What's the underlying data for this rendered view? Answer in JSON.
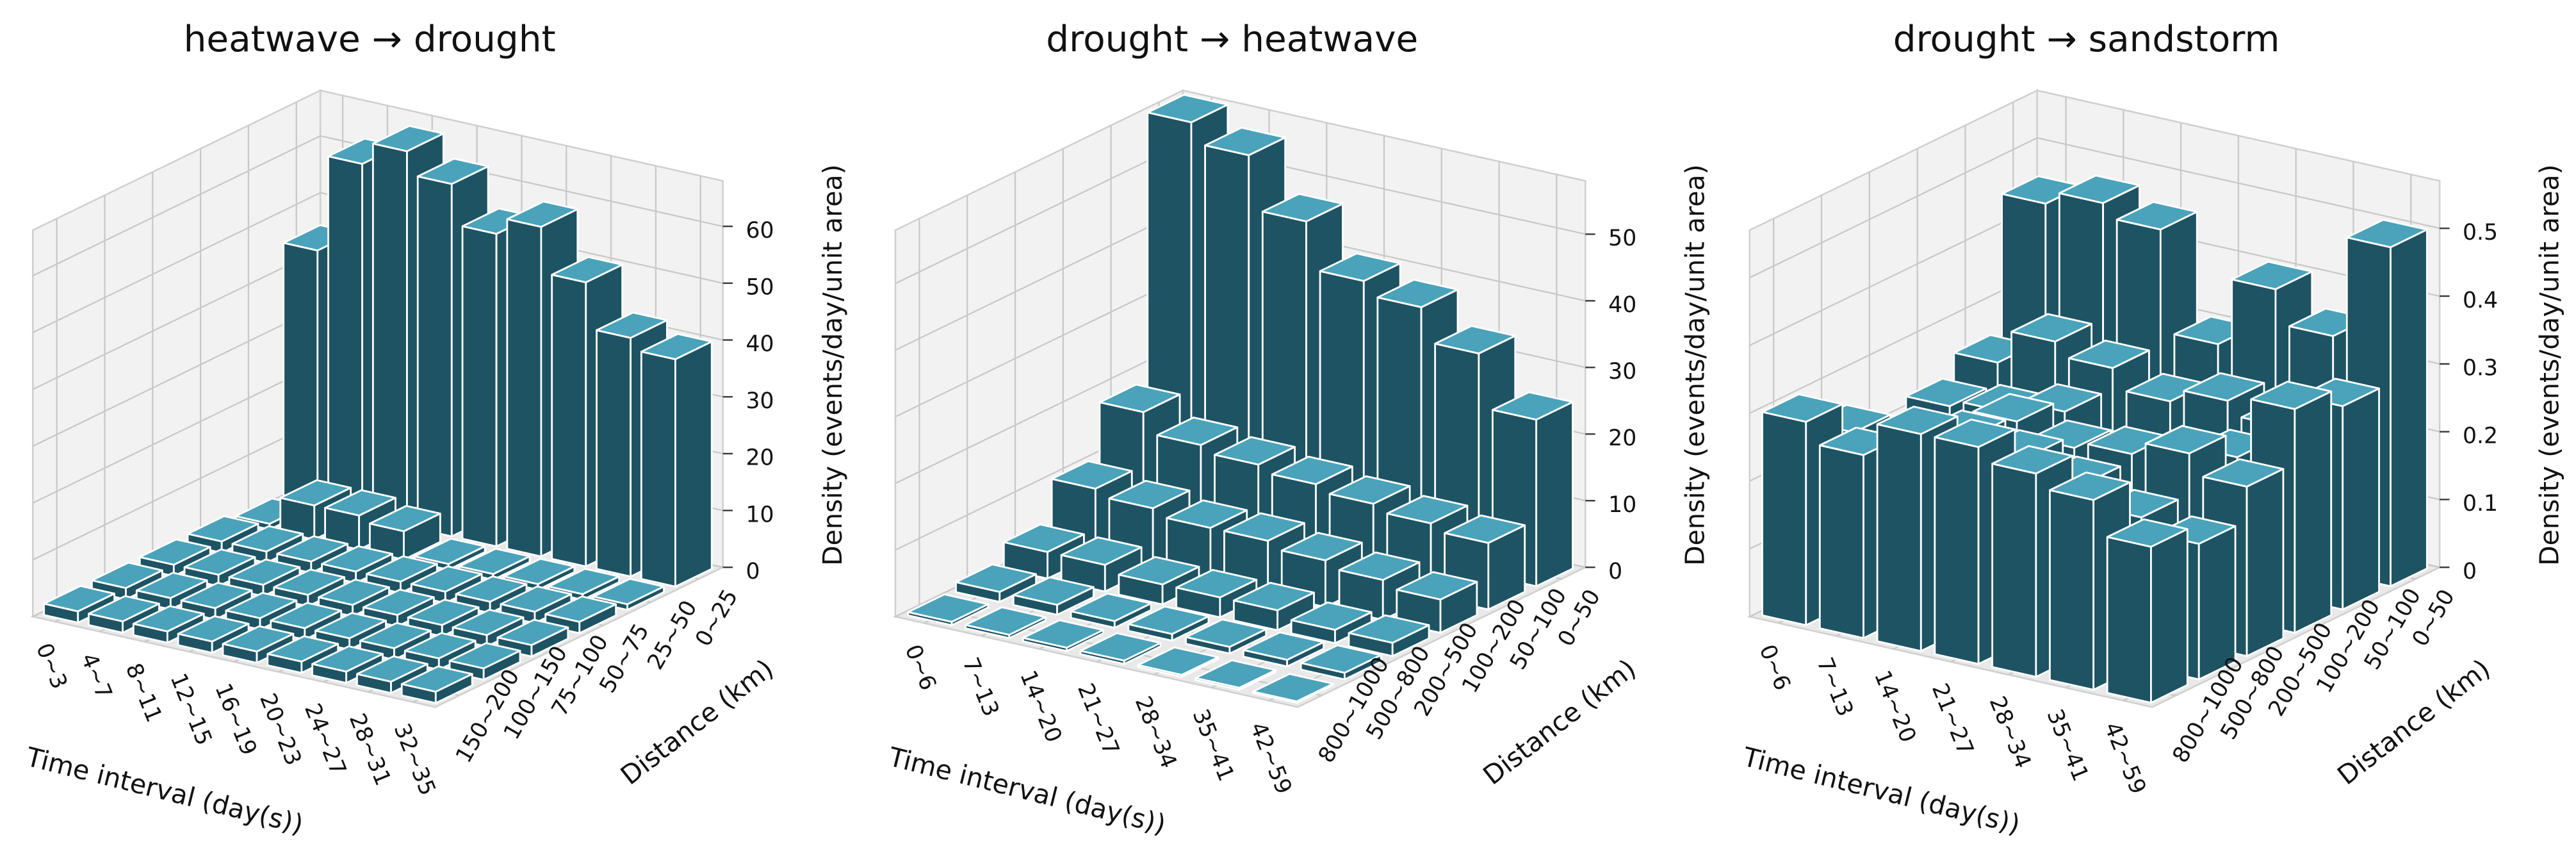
{
  "chart_data": [
    {
      "type": "bar3d",
      "title": "heatwave → drought",
      "xlabel": "Time interval (day(s))",
      "ylabel": "Distance (km)",
      "zlabel": "Density (events/day/unit area)",
      "x_categories": [
        "0~3",
        "4~7",
        "8~11",
        "12~15",
        "16~19",
        "20~23",
        "24~27",
        "28~31",
        "32~35"
      ],
      "y_categories": [
        "0~25",
        "25~50",
        "50~75",
        "75~100",
        "100~150",
        "150~200"
      ],
      "values": [
        [
          45,
          62,
          66,
          62,
          55,
          58,
          50,
          42,
          40
        ],
        [
          1,
          6,
          6,
          5,
          1,
          1,
          1,
          1,
          1
        ],
        [
          2,
          2,
          2,
          2,
          2,
          2,
          2,
          2,
          2
        ],
        [
          2,
          2,
          2,
          2,
          2,
          2,
          2,
          2,
          2
        ],
        [
          2,
          2,
          2,
          2,
          2,
          2,
          2,
          2,
          2
        ],
        [
          2,
          2,
          2,
          2,
          2,
          2,
          2,
          2,
          2
        ]
      ],
      "top_color": "#4aa3ba",
      "side_color": "#1e5363",
      "zlim": [
        0,
        68
      ],
      "zticks": [
        0,
        10,
        20,
        30,
        40,
        50,
        60
      ],
      "grid": true
    },
    {
      "type": "bar3d",
      "title": "drought → heatwave",
      "xlabel": "Time interval (day(s))",
      "ylabel": "Distance (km)",
      "zlabel": "Density (events/day/unit area)",
      "x_categories": [
        "0~6",
        "7~13",
        "14~20",
        "21~27",
        "28~34",
        "35~41",
        "42~59"
      ],
      "y_categories": [
        "0~50",
        "50~100",
        "100~200",
        "200~500",
        "500~800",
        "800~1000"
      ],
      "values": [
        [
          58,
          55,
          47,
          40,
          38,
          33,
          25
        ],
        [
          18,
          15,
          14,
          13,
          12,
          11,
          10
        ],
        [
          10,
          9,
          8,
          8,
          7,
          6,
          5
        ],
        [
          4,
          4,
          3,
          3,
          3,
          2,
          2
        ],
        [
          1.5,
          1.5,
          1,
          1,
          1,
          1,
          1
        ],
        [
          0.5,
          0.5,
          0.5,
          0.5,
          0.3,
          0.3,
          0.2
        ]
      ],
      "top_color": "#4aa3ba",
      "side_color": "#1e5363",
      "zlim": [
        0,
        58
      ],
      "zticks": [
        0,
        10,
        20,
        30,
        40,
        50
      ],
      "grid": true
    },
    {
      "type": "bar3d",
      "title": "drought → sandstorm",
      "xlabel": "Time interval (day(s))",
      "ylabel": "Distance (km)",
      "zlabel": "Density (events/day/unit area)",
      "x_categories": [
        "0~6",
        "7~13",
        "14~20",
        "21~27",
        "28~34",
        "35~41",
        "42~59"
      ],
      "y_categories": [
        "0~50",
        "50~100",
        "100~200",
        "200~500",
        "500~800",
        "800~1000"
      ],
      "values": [
        [
          0.45,
          0.47,
          0.45,
          0.3,
          0.4,
          0.35,
          0.5
        ],
        [
          0.25,
          0.3,
          0.28,
          0.25,
          0.27,
          0.25,
          0.3
        ],
        [
          0.22,
          0.23,
          0.25,
          0.2,
          0.22,
          0.24,
          0.33
        ],
        [
          0.2,
          0.22,
          0.27,
          0.25,
          0.26,
          0.28,
          0.25
        ],
        [
          0.25,
          0.24,
          0.28,
          0.27,
          0.25,
          0.22,
          0.2
        ],
        [
          0.3,
          0.27,
          0.32,
          0.32,
          0.3,
          0.28,
          0.23
        ]
      ],
      "top_color": "#4aa3ba",
      "side_color": "#1e5363",
      "zlim": [
        0,
        0.57
      ],
      "zticks": [
        0,
        0.1,
        0.2,
        0.3,
        0.4,
        0.5
      ],
      "grid": true
    }
  ]
}
